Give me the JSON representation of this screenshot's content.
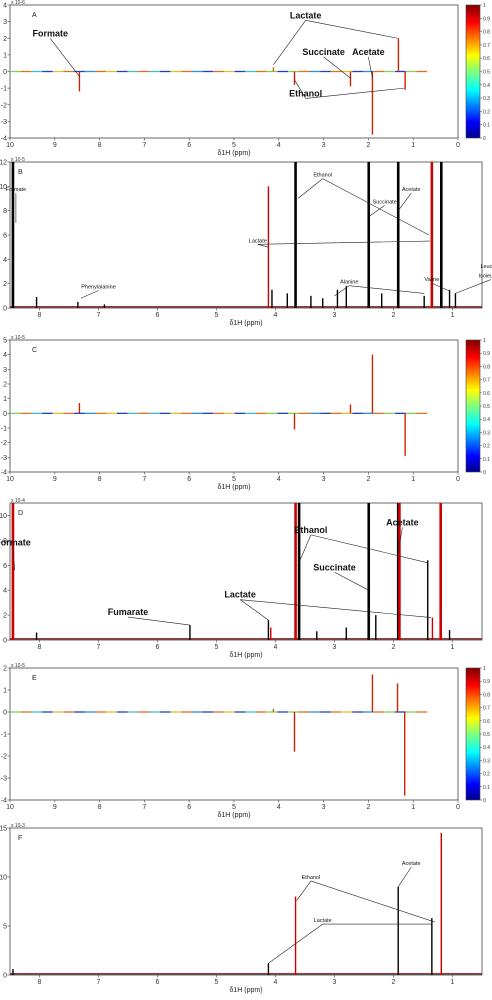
{
  "chart_data": [
    {
      "panel": "A",
      "type": "line",
      "variant": "coeff",
      "xlabel": "δ1H (ppm)",
      "xlim": [
        10,
        0
      ],
      "ylim": [
        -4,
        4
      ],
      "y_exponent": "x 10-6",
      "x_ticks": [
        10,
        9,
        8,
        7,
        6,
        5,
        4,
        3,
        2,
        1,
        0
      ],
      "y_ticks": [
        4,
        3,
        2,
        1,
        0,
        -1,
        -2,
        -3,
        -4
      ],
      "colorbar_ticks": [
        1,
        0.9,
        0.8,
        0.7,
        0.6,
        0.5,
        0.4,
        0.3,
        0.2,
        0.1,
        0
      ],
      "peaks": [
        {
          "x": 8.45,
          "y": -1.2,
          "c": "#cc2200"
        },
        {
          "x": 4.12,
          "y": 0.25,
          "c": "#cc6600"
        },
        {
          "x": 3.65,
          "y": -0.8,
          "c": "#cc2200"
        },
        {
          "x": 2.4,
          "y": -0.9,
          "c": "#cc2200"
        },
        {
          "x": 1.91,
          "y": -3.8,
          "c": "#cc2200"
        },
        {
          "x": 1.33,
          "y": 2.0,
          "c": "#cc2200"
        },
        {
          "x": 1.18,
          "y": -1.1,
          "c": "#cc2200"
        }
      ],
      "labels": [
        {
          "text": "Formate",
          "size": "big",
          "lx": 9.1,
          "ly": 2.1,
          "to": [
            [
              8.45,
              -0.3
            ]
          ]
        },
        {
          "text": "Lactate",
          "size": "big",
          "lx": 3.4,
          "ly": 3.2,
          "to": [
            [
              4.12,
              0.4
            ],
            [
              1.35,
              2.0
            ]
          ]
        },
        {
          "text": "Succinate",
          "size": "big",
          "lx": 3.0,
          "ly": 1.0,
          "to": [
            [
              2.4,
              -0.4
            ]
          ]
        },
        {
          "text": "Acetate",
          "size": "big",
          "lx": 2.0,
          "ly": 1.0,
          "to": [
            [
              1.91,
              -0.4
            ]
          ]
        },
        {
          "text": "Ethanol",
          "size": "big",
          "lx": 3.4,
          "ly": -1.5,
          "to": [
            [
              3.65,
              -0.5
            ],
            [
              1.2,
              -1.0
            ]
          ]
        }
      ]
    },
    {
      "panel": "B",
      "type": "line",
      "variant": "spectrum",
      "xlabel": "δ1H (ppm)",
      "xlim": [
        8.5,
        0.5
      ],
      "ylim": [
        0,
        12
      ],
      "y_exponent": "x 10-5",
      "x_ticks": [
        8,
        7,
        6,
        5,
        4,
        3,
        2,
        1
      ],
      "y_ticks": [
        0,
        2,
        4,
        6,
        8,
        10,
        12
      ],
      "peaks": [
        {
          "x": 8.45,
          "y": 13,
          "c": "#000000"
        },
        {
          "x": 8.05,
          "y": 0.9,
          "c": "#000000"
        },
        {
          "x": 7.35,
          "y": 0.5,
          "c": "#000000"
        },
        {
          "x": 6.9,
          "y": 0.3,
          "c": "#000000"
        },
        {
          "x": 4.12,
          "y": 10.0,
          "c": "#cc0000"
        },
        {
          "x": 4.06,
          "y": 1.5,
          "c": "#000000"
        },
        {
          "x": 3.8,
          "y": 1.2,
          "c": "#000000"
        },
        {
          "x": 3.66,
          "y": 13,
          "c": "#000000"
        },
        {
          "x": 3.4,
          "y": 1.0,
          "c": "#000000"
        },
        {
          "x": 3.2,
          "y": 0.8,
          "c": "#000000"
        },
        {
          "x": 2.95,
          "y": 1.5,
          "c": "#000000"
        },
        {
          "x": 2.8,
          "y": 1.8,
          "c": "#000000"
        },
        {
          "x": 2.42,
          "y": 13,
          "c": "#000000"
        },
        {
          "x": 2.2,
          "y": 1.2,
          "c": "#000000"
        },
        {
          "x": 1.92,
          "y": 13,
          "c": "#000000"
        },
        {
          "x": 1.48,
          "y": 1.0,
          "c": "#000000"
        },
        {
          "x": 1.35,
          "y": 13,
          "c": "#cc0000"
        },
        {
          "x": 1.19,
          "y": 13,
          "c": "#000000"
        },
        {
          "x": 1.05,
          "y": 1.5,
          "c": "#000000"
        },
        {
          "x": 0.95,
          "y": 1.2,
          "c": "#000000"
        }
      ],
      "labels": [
        {
          "text": "Formate",
          "size": "small",
          "lx": 8.4,
          "ly": 9.6,
          "to": [
            [
              8.4,
              7.0
            ]
          ]
        },
        {
          "text": "Phenylalanine",
          "size": "small",
          "lx": 7.0,
          "ly": 1.6,
          "to": [
            [
              7.3,
              0.8
            ]
          ]
        },
        {
          "text": "Ethanol",
          "size": "small",
          "lx": 3.2,
          "ly": 10.8,
          "to": [
            [
              3.62,
              9.0
            ],
            [
              1.4,
              6.0
            ]
          ]
        },
        {
          "text": "Succinate",
          "size": "small",
          "lx": 2.15,
          "ly": 8.6,
          "to": [
            [
              2.42,
              7.5
            ]
          ]
        },
        {
          "text": "Acetate",
          "size": "small",
          "lx": 1.7,
          "ly": 9.6,
          "to": [
            [
              1.92,
              8.0
            ]
          ]
        },
        {
          "text": "Lactate",
          "size": "small",
          "lx": 4.3,
          "ly": 5.4,
          "to": [
            [
              4.12,
              5.0
            ],
            [
              1.38,
              5.5
            ]
          ]
        },
        {
          "text": "Alanine",
          "size": "small",
          "lx": 2.75,
          "ly": 2.0,
          "to": [
            [
              3.0,
              1.0
            ],
            [
              1.48,
              1.2
            ]
          ]
        },
        {
          "text": "Valine",
          "size": "small",
          "lx": 1.35,
          "ly": 2.2,
          "to": [
            [
              1.05,
              1.4
            ]
          ]
        },
        {
          "text": "Leucine/",
          "size": "small",
          "lx": 0.35,
          "ly": 3.3,
          "to": []
        },
        {
          "text": "Isoleucine",
          "size": "small",
          "lx": 0.35,
          "ly": 2.5,
          "to": [
            [
              0.95,
              1.2
            ]
          ]
        }
      ]
    },
    {
      "panel": "C",
      "type": "line",
      "variant": "coeff",
      "xlabel": "δ1H (ppm)",
      "xlim": [
        10,
        0
      ],
      "ylim": [
        -4,
        5
      ],
      "y_exponent": "x 10-5",
      "x_ticks": [
        10,
        9,
        8,
        7,
        6,
        5,
        4,
        3,
        2,
        1,
        0
      ],
      "y_ticks": [
        5,
        4,
        3,
        2,
        1,
        0,
        -1,
        -2,
        -3,
        -4
      ],
      "colorbar_ticks": [
        1,
        0.9,
        0.8,
        0.7,
        0.6,
        0.5,
        0.4,
        0.3,
        0.2,
        0.1,
        0
      ],
      "peaks": [
        {
          "x": 8.45,
          "y": 0.7,
          "c": "#cc2200"
        },
        {
          "x": 3.65,
          "y": -1.1,
          "c": "#cc2200"
        },
        {
          "x": 2.4,
          "y": 0.6,
          "c": "#cc2200"
        },
        {
          "x": 1.91,
          "y": 4.0,
          "c": "#cc2200"
        },
        {
          "x": 1.18,
          "y": -2.9,
          "c": "#cc2200"
        }
      ],
      "labels": []
    },
    {
      "panel": "D",
      "type": "line",
      "variant": "spectrum",
      "xlabel": "δ1H (ppm)",
      "xlim": [
        8.5,
        0.5
      ],
      "ylim": [
        0,
        11
      ],
      "y_exponent": "x 10-4",
      "x_ticks": [
        8,
        7,
        6,
        5,
        4,
        3,
        2,
        1
      ],
      "y_ticks": [
        0,
        2,
        4,
        6,
        8,
        10
      ],
      "peaks": [
        {
          "x": 8.45,
          "y": 12,
          "c": "#cc0000"
        },
        {
          "x": 8.05,
          "y": 0.6,
          "c": "#000000"
        },
        {
          "x": 5.45,
          "y": 1.2,
          "c": "#000000"
        },
        {
          "x": 4.12,
          "y": 1.6,
          "c": "#000000"
        },
        {
          "x": 4.08,
          "y": 1.0,
          "c": "#cc0000"
        },
        {
          "x": 3.66,
          "y": 12,
          "c": "#cc0000"
        },
        {
          "x": 3.6,
          "y": 12,
          "c": "#000000"
        },
        {
          "x": 3.3,
          "y": 0.7,
          "c": "#000000"
        },
        {
          "x": 2.8,
          "y": 1.0,
          "c": "#000000"
        },
        {
          "x": 2.42,
          "y": 12,
          "c": "#000000"
        },
        {
          "x": 2.3,
          "y": 2.0,
          "c": "#000000"
        },
        {
          "x": 1.92,
          "y": 12,
          "c": "#000000"
        },
        {
          "x": 1.9,
          "y": 12,
          "c": "#cc0000"
        },
        {
          "x": 1.42,
          "y": 6.4,
          "c": "#000000"
        },
        {
          "x": 1.34,
          "y": 1.8,
          "c": "#cc0000"
        },
        {
          "x": 1.2,
          "y": 12,
          "c": "#cc0000"
        },
        {
          "x": 1.05,
          "y": 0.8,
          "c": "#000000"
        }
      ],
      "labels": [
        {
          "text": "Formate",
          "size": "big",
          "lx": 8.45,
          "ly": 7.6,
          "to": [
            [
              8.42,
              5.6
            ]
          ]
        },
        {
          "text": "Ethanol",
          "size": "big",
          "lx": 3.4,
          "ly": 8.6,
          "to": [
            [
              3.62,
              6.0
            ],
            [
              1.42,
              6.2
            ]
          ]
        },
        {
          "text": "Acetate",
          "size": "big",
          "lx": 1.85,
          "ly": 9.2,
          "to": [
            [
              1.92,
              7.0
            ]
          ]
        },
        {
          "text": "Succinate",
          "size": "big",
          "lx": 3.0,
          "ly": 5.6,
          "to": [
            [
              2.42,
              4.0
            ]
          ]
        },
        {
          "text": "Lactate",
          "size": "big",
          "lx": 4.6,
          "ly": 3.4,
          "to": [
            [
              4.12,
              1.6
            ],
            [
              1.36,
              1.8
            ]
          ]
        },
        {
          "text": "Fumarate",
          "size": "big",
          "lx": 6.5,
          "ly": 2.0,
          "to": [
            [
              5.45,
              1.2
            ]
          ]
        }
      ]
    },
    {
      "panel": "E",
      "type": "line",
      "variant": "coeff",
      "xlabel": "δ1H (ppm)",
      "xlim": [
        10,
        0
      ],
      "ylim": [
        -4,
        2
      ],
      "y_exponent": "x 10-5",
      "x_ticks": [
        10,
        9,
        8,
        7,
        6,
        5,
        4,
        3,
        2,
        1,
        0
      ],
      "y_ticks": [
        2,
        1,
        0,
        -1,
        -2,
        -3,
        -4
      ],
      "colorbar_ticks": [
        1,
        0.9,
        0.8,
        0.7,
        0.6,
        0.5,
        0.4,
        0.3,
        0.2,
        0.1,
        0
      ],
      "peaks": [
        {
          "x": 4.12,
          "y": 0.15,
          "c": "#cc6600"
        },
        {
          "x": 3.65,
          "y": -1.8,
          "c": "#cc2200"
        },
        {
          "x": 1.91,
          "y": 1.7,
          "c": "#cc2200"
        },
        {
          "x": 1.35,
          "y": 1.3,
          "c": "#cc2200"
        },
        {
          "x": 1.19,
          "y": -3.8,
          "c": "#cc2200"
        }
      ],
      "labels": []
    },
    {
      "panel": "F",
      "type": "line",
      "variant": "spectrum",
      "xlabel": "δ1H (ppm)",
      "xlim": [
        8.5,
        0.5
      ],
      "ylim": [
        0,
        15
      ],
      "y_exponent": "x 10-3",
      "x_ticks": [
        8,
        7,
        6,
        5,
        4,
        3,
        2,
        1
      ],
      "y_ticks": [
        0,
        5,
        10,
        15
      ],
      "peaks": [
        {
          "x": 8.45,
          "y": 0.6,
          "c": "#000000"
        },
        {
          "x": 4.12,
          "y": 1.2,
          "c": "#000000"
        },
        {
          "x": 3.66,
          "y": 8.0,
          "c": "#cc0000"
        },
        {
          "x": 1.92,
          "y": 9.0,
          "c": "#000000"
        },
        {
          "x": 1.35,
          "y": 5.8,
          "c": "#000000"
        },
        {
          "x": 1.19,
          "y": 14.5,
          "c": "#cc0000"
        }
      ],
      "labels": [
        {
          "text": "Acetate",
          "size": "small",
          "lx": 1.7,
          "ly": 11.2,
          "to": [
            [
              1.92,
              9.0
            ]
          ]
        },
        {
          "text": "Ethanol",
          "size": "small",
          "lx": 3.4,
          "ly": 9.8,
          "to": [
            [
              3.64,
              7.6
            ],
            [
              1.3,
              5.4
            ]
          ]
        },
        {
          "text": "Lactate",
          "size": "small",
          "lx": 3.2,
          "ly": 5.4,
          "to": [
            [
              4.12,
              1.2
            ],
            [
              1.36,
              5.2
            ]
          ]
        }
      ]
    }
  ]
}
